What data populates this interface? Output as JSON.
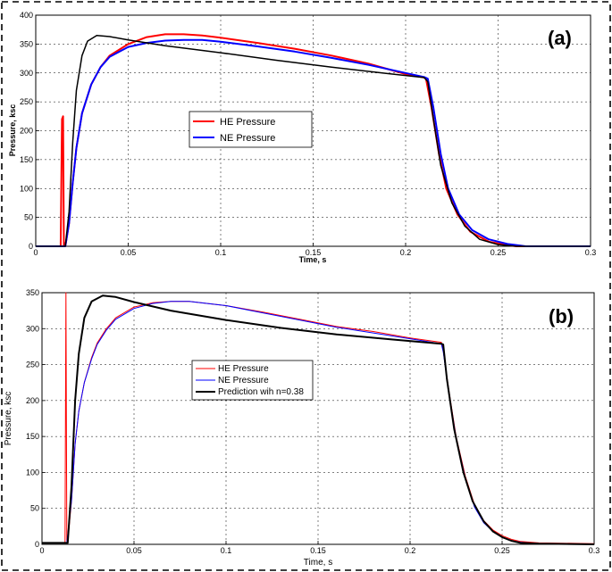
{
  "chart_data": [
    {
      "type": "line",
      "panel_label": "(a)",
      "xlabel": "Time, s",
      "ylabel": "Pressure, ksc",
      "xlim": [
        0,
        0.3
      ],
      "ylim": [
        0,
        400
      ],
      "xticks": [
        0,
        0.05,
        0.1,
        0.15,
        0.2,
        0.25,
        0.3
      ],
      "xtick_labels": [
        "0",
        "0.05",
        "0.1",
        "0.15",
        "0.2",
        "0.25",
        "0.3"
      ],
      "yticks": [
        0,
        50,
        100,
        150,
        200,
        250,
        300,
        350,
        400
      ],
      "ytick_labels": [
        "0",
        "50",
        "100",
        "150",
        "200",
        "250",
        "300",
        "350",
        "400"
      ],
      "grid": true,
      "legend_placement": "center-left",
      "series": [
        {
          "name": "HE Pressure",
          "color": "#ff0000",
          "points": [
            [
              0,
              0
            ],
            [
              0.0135,
              0
            ],
            [
              0.0142,
              220
            ],
            [
              0.0148,
              225
            ],
            [
              0.0152,
              0
            ],
            [
              0.016,
              0
            ],
            [
              0.018,
              40
            ],
            [
              0.02,
              110
            ],
            [
              0.022,
              170
            ],
            [
              0.025,
              230
            ],
            [
              0.03,
              280
            ],
            [
              0.035,
              310
            ],
            [
              0.04,
              330
            ],
            [
              0.05,
              350
            ],
            [
              0.06,
              362
            ],
            [
              0.07,
              367
            ],
            [
              0.08,
              367
            ],
            [
              0.09,
              365
            ],
            [
              0.1,
              361
            ],
            [
              0.12,
              352
            ],
            [
              0.14,
              342
            ],
            [
              0.16,
              330
            ],
            [
              0.18,
              316
            ],
            [
              0.2,
              298
            ],
            [
              0.21,
              292
            ],
            [
              0.211,
              290
            ],
            [
              0.214,
              240
            ],
            [
              0.218,
              160
            ],
            [
              0.222,
              100
            ],
            [
              0.228,
              55
            ],
            [
              0.235,
              25
            ],
            [
              0.245,
              8
            ],
            [
              0.255,
              2
            ],
            [
              0.26,
              0
            ],
            [
              0.3,
              0
            ]
          ]
        },
        {
          "name": "NE Pressure",
          "color": "#0000ff",
          "points": [
            [
              0,
              0
            ],
            [
              0.016,
              0
            ],
            [
              0.018,
              40
            ],
            [
              0.02,
              110
            ],
            [
              0.022,
              170
            ],
            [
              0.025,
              230
            ],
            [
              0.03,
              280
            ],
            [
              0.035,
              310
            ],
            [
              0.04,
              328
            ],
            [
              0.05,
              345
            ],
            [
              0.06,
              352
            ],
            [
              0.07,
              356
            ],
            [
              0.08,
              357
            ],
            [
              0.09,
              357
            ],
            [
              0.1,
              354
            ],
            [
              0.12,
              346
            ],
            [
              0.14,
              337
            ],
            [
              0.16,
              326
            ],
            [
              0.18,
              314
            ],
            [
              0.2,
              300
            ],
            [
              0.21,
              293
            ],
            [
              0.212,
              290
            ],
            [
              0.215,
              240
            ],
            [
              0.219,
              160
            ],
            [
              0.223,
              100
            ],
            [
              0.229,
              55
            ],
            [
              0.236,
              28
            ],
            [
              0.245,
              12
            ],
            [
              0.255,
              4
            ],
            [
              0.265,
              0
            ],
            [
              0.3,
              0
            ]
          ]
        },
        {
          "name": "",
          "color": "#000000",
          "points": [
            [
              0,
              0
            ],
            [
              0.016,
              0
            ],
            [
              0.018,
              60
            ],
            [
              0.02,
              180
            ],
            [
              0.022,
              270
            ],
            [
              0.025,
              330
            ],
            [
              0.028,
              355
            ],
            [
              0.033,
              365
            ],
            [
              0.04,
              363
            ],
            [
              0.05,
              357
            ],
            [
              0.07,
              347
            ],
            [
              0.1,
              335
            ],
            [
              0.13,
              322
            ],
            [
              0.16,
              310
            ],
            [
              0.19,
              299
            ],
            [
              0.21,
              292
            ],
            [
              0.212,
              285
            ],
            [
              0.215,
              220
            ],
            [
              0.219,
              140
            ],
            [
              0.225,
              75
            ],
            [
              0.232,
              35
            ],
            [
              0.24,
              12
            ],
            [
              0.25,
              3
            ],
            [
              0.26,
              0
            ],
            [
              0.3,
              0
            ]
          ]
        }
      ]
    },
    {
      "type": "line",
      "panel_label": "(b)",
      "xlabel": "Time, s",
      "ylabel": "Pressure, ksc",
      "xlim": [
        0,
        0.3
      ],
      "ylim": [
        0,
        350
      ],
      "xticks": [
        0,
        0.05,
        0.1,
        0.15,
        0.2,
        0.25,
        0.3
      ],
      "xtick_labels": [
        "0",
        "0.05",
        "0.1",
        "0.15",
        "0.2",
        "0.25",
        "0.3"
      ],
      "yticks": [
        0,
        50,
        100,
        150,
        200,
        250,
        300,
        350
      ],
      "ytick_labels": [
        "0",
        "50",
        "100",
        "150",
        "200",
        "250",
        "300",
        "350"
      ],
      "grid": true,
      "legend_placement": "center-left",
      "series": [
        {
          "name": "HE Pressure",
          "color": "#ff0000",
          "points": [
            [
              0,
              2
            ],
            [
              0.0125,
              2
            ],
            [
              0.013,
              350
            ],
            [
              0.0135,
              5
            ],
            [
              0.014,
              3
            ],
            [
              0.016,
              60
            ],
            [
              0.018,
              140
            ],
            [
              0.02,
              185
            ],
            [
              0.023,
              225
            ],
            [
              0.027,
              260
            ],
            [
              0.03,
              280
            ],
            [
              0.035,
              300
            ],
            [
              0.04,
              315
            ],
            [
              0.05,
              330
            ],
            [
              0.06,
              336
            ],
            [
              0.07,
              338
            ],
            [
              0.08,
              338
            ],
            [
              0.1,
              332
            ],
            [
              0.12,
              323
            ],
            [
              0.14,
              313
            ],
            [
              0.16,
              303
            ],
            [
              0.18,
              296
            ],
            [
              0.2,
              287
            ],
            [
              0.217,
              281
            ],
            [
              0.218,
              270
            ],
            [
              0.221,
              215
            ],
            [
              0.225,
              150
            ],
            [
              0.23,
              95
            ],
            [
              0.235,
              55
            ],
            [
              0.24,
              33
            ],
            [
              0.245,
              20
            ],
            [
              0.25,
              12
            ],
            [
              0.255,
              7
            ],
            [
              0.26,
              4
            ],
            [
              0.27,
              2
            ],
            [
              0.3,
              1
            ]
          ]
        },
        {
          "name": "NE Pressure",
          "color": "#0000ff",
          "points": [
            [
              0,
              2
            ],
            [
              0.0135,
              2
            ],
            [
              0.016,
              60
            ],
            [
              0.018,
              140
            ],
            [
              0.02,
              185
            ],
            [
              0.023,
              225
            ],
            [
              0.027,
              258
            ],
            [
              0.03,
              278
            ],
            [
              0.035,
              298
            ],
            [
              0.04,
              313
            ],
            [
              0.05,
              328
            ],
            [
              0.06,
              335
            ],
            [
              0.07,
              338
            ],
            [
              0.08,
              338
            ],
            [
              0.1,
              332
            ],
            [
              0.12,
              322
            ],
            [
              0.14,
              312
            ],
            [
              0.16,
              302
            ],
            [
              0.18,
              294
            ],
            [
              0.2,
              286
            ],
            [
              0.217,
              279
            ],
            [
              0.218,
              268
            ],
            [
              0.221,
              212
            ],
            [
              0.225,
              148
            ],
            [
              0.23,
              92
            ],
            [
              0.235,
              52
            ],
            [
              0.24,
              30
            ],
            [
              0.245,
              18
            ],
            [
              0.25,
              10
            ],
            [
              0.255,
              5
            ],
            [
              0.26,
              3
            ],
            [
              0.27,
              1
            ],
            [
              0.3,
              0
            ]
          ]
        },
        {
          "name": "Prediction wih n=0.38",
          "color": "#000000",
          "points": [
            [
              0,
              2
            ],
            [
              0.014,
              2
            ],
            [
              0.016,
              80
            ],
            [
              0.018,
              200
            ],
            [
              0.02,
              265
            ],
            [
              0.023,
              315
            ],
            [
              0.027,
              338
            ],
            [
              0.033,
              346
            ],
            [
              0.04,
              344
            ],
            [
              0.05,
              337
            ],
            [
              0.07,
              325
            ],
            [
              0.1,
              312
            ],
            [
              0.13,
              301
            ],
            [
              0.16,
              292
            ],
            [
              0.19,
              285
            ],
            [
              0.217,
              279
            ],
            [
              0.218,
              278
            ],
            [
              0.22,
              230
            ],
            [
              0.224,
              160
            ],
            [
              0.229,
              100
            ],
            [
              0.234,
              60
            ],
            [
              0.24,
              32
            ],
            [
              0.245,
              18
            ],
            [
              0.25,
              10
            ],
            [
              0.255,
              5
            ],
            [
              0.26,
              2
            ],
            [
              0.27,
              1
            ],
            [
              0.3,
              0
            ]
          ]
        }
      ]
    }
  ]
}
